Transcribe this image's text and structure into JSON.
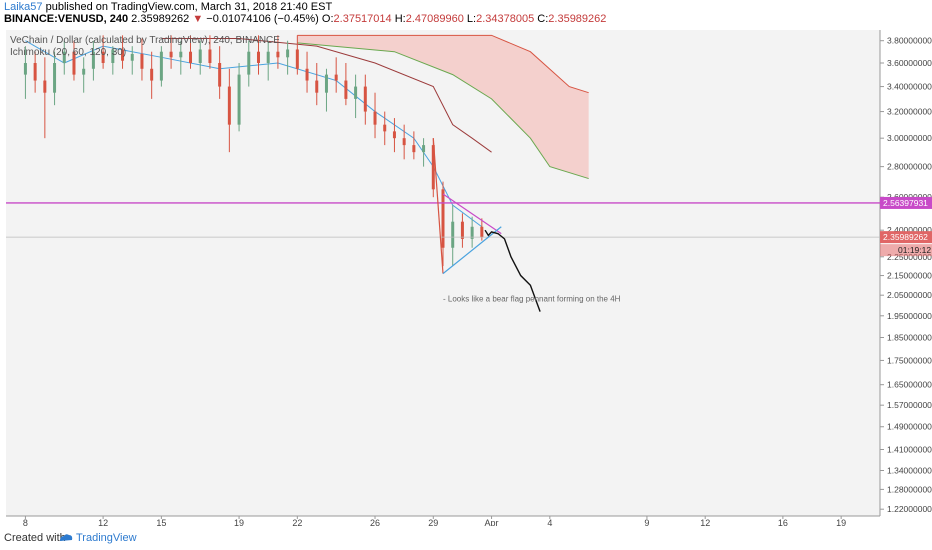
{
  "header": {
    "author": "Laika57",
    "published": "published on TradingView.com, March 31, 2018 21:40 EST",
    "symbol": "BINANCE:VENUSD, 240",
    "last": "2.35989262",
    "arrow": "▼",
    "change": "−0.01074106 (−0.45%)",
    "o_label": "O:",
    "o_value": "2.37517014",
    "h_label": "H:",
    "h_value": "2.47089960",
    "l_label": "L:",
    "l_value": "2.34378005",
    "c_label": "C:",
    "c_value": "2.35989262"
  },
  "legend": {
    "title": "VeChain / Dollar (calculated by TradingView), 240, BINANCE",
    "indicator": "Ichimoku (20, 60, 120, 30)"
  },
  "footer": {
    "created_with": "Created with",
    "brand": "TradingView"
  },
  "colors": {
    "background": "#f3f3f3",
    "up_candle": "#6ba583",
    "down_candle": "#d75442",
    "horizontal_line": "#c84ac8",
    "price_tag": "#e06666",
    "conversion_line": "#4aa3df",
    "base_line": "#9c3b3b",
    "lagging_span": "#6aa84f",
    "cloud_fill": "#f4c7c3",
    "brand": "#2e7bcf"
  },
  "chart_data": {
    "type": "candlestick",
    "y_scale": "log",
    "ylim": [
      1.2,
      3.9
    ],
    "y_ticks": [
      "3.80000000",
      "3.60000000",
      "3.40000000",
      "3.20000000",
      "3.00000000",
      "2.80000000",
      "2.60000000",
      "2.40000000",
      "2.25000000",
      "2.15000000",
      "2.05000000",
      "1.95000000",
      "1.85000000",
      "1.75000000",
      "1.65000000",
      "1.57000000",
      "1.49000000",
      "1.41000000",
      "1.34000000",
      "1.28000000",
      "1.22000000"
    ],
    "x_ticks": [
      "8",
      "12",
      "15",
      "19",
      "22",
      "26",
      "29",
      "Apr",
      "4",
      "9",
      "12",
      "16",
      "19"
    ],
    "x_tick_dates": [
      "2018-03-08",
      "2018-03-12",
      "2018-03-15",
      "2018-03-19",
      "2018-03-22",
      "2018-03-26",
      "2018-03-29",
      "2018-04-01",
      "2018-04-04",
      "2018-04-09",
      "2018-04-12",
      "2018-04-16",
      "2018-04-19"
    ],
    "xlim": [
      "2018-03-07",
      "2018-04-21"
    ],
    "horizontal_level": 2.56397931,
    "horizontal_level_label": "2.56397931",
    "last_price": 2.35989262,
    "last_price_label": "2.35989262",
    "countdown_label": "01:19:12",
    "annotation": "- Looks like a bear flag pennant forming on the 4H",
    "candles": [
      {
        "t": "2018-03-08",
        "o": 3.5,
        "h": 3.75,
        "l": 3.3,
        "c": 3.6
      },
      {
        "t": "2018-03-08T12",
        "o": 3.6,
        "h": 3.7,
        "l": 3.35,
        "c": 3.45
      },
      {
        "t": "2018-03-09",
        "o": 3.45,
        "h": 3.65,
        "l": 3.0,
        "c": 3.35
      },
      {
        "t": "2018-03-09T12",
        "o": 3.35,
        "h": 3.7,
        "l": 3.25,
        "c": 3.6
      },
      {
        "t": "2018-03-10",
        "o": 3.6,
        "h": 3.8,
        "l": 3.5,
        "c": 3.7
      },
      {
        "t": "2018-03-10T12",
        "o": 3.7,
        "h": 3.8,
        "l": 3.45,
        "c": 3.5
      },
      {
        "t": "2018-03-11",
        "o": 3.5,
        "h": 3.65,
        "l": 3.35,
        "c": 3.55
      },
      {
        "t": "2018-03-11T12",
        "o": 3.55,
        "h": 3.8,
        "l": 3.45,
        "c": 3.7
      },
      {
        "t": "2018-03-12",
        "o": 3.7,
        "h": 3.85,
        "l": 3.55,
        "c": 3.6
      },
      {
        "t": "2018-03-12T12",
        "o": 3.6,
        "h": 3.75,
        "l": 3.5,
        "c": 3.72
      },
      {
        "t": "2018-03-13",
        "o": 3.72,
        "h": 3.85,
        "l": 3.55,
        "c": 3.62
      },
      {
        "t": "2018-03-13T12",
        "o": 3.62,
        "h": 3.75,
        "l": 3.5,
        "c": 3.68
      },
      {
        "t": "2018-03-14",
        "o": 3.68,
        "h": 3.82,
        "l": 3.45,
        "c": 3.55
      },
      {
        "t": "2018-03-14T12",
        "o": 3.55,
        "h": 3.7,
        "l": 3.3,
        "c": 3.45
      },
      {
        "t": "2018-03-15",
        "o": 3.45,
        "h": 3.75,
        "l": 3.4,
        "c": 3.7
      },
      {
        "t": "2018-03-15T12",
        "o": 3.7,
        "h": 3.85,
        "l": 3.55,
        "c": 3.65
      },
      {
        "t": "2018-03-16",
        "o": 3.65,
        "h": 3.8,
        "l": 3.5,
        "c": 3.7
      },
      {
        "t": "2018-03-16T12",
        "o": 3.7,
        "h": 3.85,
        "l": 3.55,
        "c": 3.6
      },
      {
        "t": "2018-03-17",
        "o": 3.6,
        "h": 3.8,
        "l": 3.5,
        "c": 3.72
      },
      {
        "t": "2018-03-17T12",
        "o": 3.72,
        "h": 3.85,
        "l": 3.55,
        "c": 3.6
      },
      {
        "t": "2018-03-18",
        "o": 3.6,
        "h": 3.75,
        "l": 3.3,
        "c": 3.4
      },
      {
        "t": "2018-03-18T12",
        "o": 3.4,
        "h": 3.55,
        "l": 2.9,
        "c": 3.1
      },
      {
        "t": "2018-03-19",
        "o": 3.1,
        "h": 3.6,
        "l": 3.05,
        "c": 3.5
      },
      {
        "t": "2018-03-19T12",
        "o": 3.5,
        "h": 3.8,
        "l": 3.4,
        "c": 3.7
      },
      {
        "t": "2018-03-20",
        "o": 3.7,
        "h": 3.85,
        "l": 3.5,
        "c": 3.6
      },
      {
        "t": "2018-03-20T12",
        "o": 3.6,
        "h": 3.8,
        "l": 3.45,
        "c": 3.7
      },
      {
        "t": "2018-03-21",
        "o": 3.7,
        "h": 3.85,
        "l": 3.55,
        "c": 3.65
      },
      {
        "t": "2018-03-21T12",
        "o": 3.65,
        "h": 3.8,
        "l": 3.5,
        "c": 3.72
      },
      {
        "t": "2018-03-22",
        "o": 3.72,
        "h": 3.85,
        "l": 3.5,
        "c": 3.55
      },
      {
        "t": "2018-03-22T12",
        "o": 3.55,
        "h": 3.7,
        "l": 3.35,
        "c": 3.45
      },
      {
        "t": "2018-03-23",
        "o": 3.45,
        "h": 3.6,
        "l": 3.25,
        "c": 3.35
      },
      {
        "t": "2018-03-23T12",
        "o": 3.35,
        "h": 3.55,
        "l": 3.2,
        "c": 3.5
      },
      {
        "t": "2018-03-24",
        "o": 3.5,
        "h": 3.65,
        "l": 3.35,
        "c": 3.45
      },
      {
        "t": "2018-03-24T12",
        "o": 3.45,
        "h": 3.6,
        "l": 3.25,
        "c": 3.3
      },
      {
        "t": "2018-03-25",
        "o": 3.3,
        "h": 3.5,
        "l": 3.15,
        "c": 3.4
      },
      {
        "t": "2018-03-25T12",
        "o": 3.4,
        "h": 3.5,
        "l": 3.1,
        "c": 3.2
      },
      {
        "t": "2018-03-26",
        "o": 3.2,
        "h": 3.35,
        "l": 3.0,
        "c": 3.1
      },
      {
        "t": "2018-03-26T12",
        "o": 3.1,
        "h": 3.2,
        "l": 2.95,
        "c": 3.05
      },
      {
        "t": "2018-03-27",
        "o": 3.05,
        "h": 3.15,
        "l": 2.9,
        "c": 3.0
      },
      {
        "t": "2018-03-27T12",
        "o": 3.0,
        "h": 3.1,
        "l": 2.85,
        "c": 2.95
      },
      {
        "t": "2018-03-28",
        "o": 2.95,
        "h": 3.05,
        "l": 2.85,
        "c": 2.9
      },
      {
        "t": "2018-03-28T12",
        "o": 2.9,
        "h": 3.0,
        "l": 2.8,
        "c": 2.95
      },
      {
        "t": "2018-03-29",
        "o": 2.95,
        "h": 3.0,
        "l": 2.6,
        "c": 2.65
      },
      {
        "t": "2018-03-29T12",
        "o": 2.65,
        "h": 2.7,
        "l": 2.2,
        "c": 2.3
      },
      {
        "t": "2018-03-30",
        "o": 2.3,
        "h": 2.55,
        "l": 2.2,
        "c": 2.45
      },
      {
        "t": "2018-03-30T12",
        "o": 2.45,
        "h": 2.5,
        "l": 2.3,
        "c": 2.35
      },
      {
        "t": "2018-03-31",
        "o": 2.35,
        "h": 2.48,
        "l": 2.3,
        "c": 2.42
      },
      {
        "t": "2018-03-31T12",
        "o": 2.42,
        "h": 2.47,
        "l": 2.34,
        "c": 2.36
      }
    ],
    "tenkan": [
      {
        "t": "2018-03-08",
        "v": 3.8
      },
      {
        "t": "2018-03-10",
        "v": 3.6
      },
      {
        "t": "2018-03-12",
        "v": 3.75
      },
      {
        "t": "2018-03-15",
        "v": 3.65
      },
      {
        "t": "2018-03-18",
        "v": 3.55
      },
      {
        "t": "2018-03-21",
        "v": 3.6
      },
      {
        "t": "2018-03-24",
        "v": 3.45
      },
      {
        "t": "2018-03-26",
        "v": 3.2
      },
      {
        "t": "2018-03-28",
        "v": 3.0
      },
      {
        "t": "2018-03-29",
        "v": 2.8
      },
      {
        "t": "2018-03-30",
        "v": 2.55
      },
      {
        "t": "2018-03-31T12",
        "v": 2.42
      }
    ],
    "kijun": [
      {
        "t": "2018-03-15",
        "v": 3.82
      },
      {
        "t": "2018-03-19",
        "v": 3.82
      },
      {
        "t": "2018-03-23",
        "v": 3.75
      },
      {
        "t": "2018-03-26",
        "v": 3.6
      },
      {
        "t": "2018-03-29",
        "v": 3.4
      },
      {
        "t": "2018-03-30",
        "v": 3.1
      },
      {
        "t": "2018-03-31",
        "v": 3.0
      },
      {
        "t": "2018-04-01",
        "v": 2.9
      }
    ],
    "cloud_upper": [
      {
        "t": "2018-03-22",
        "v": 3.85
      },
      {
        "t": "2018-03-28",
        "v": 3.85
      },
      {
        "t": "2018-04-01",
        "v": 3.85
      },
      {
        "t": "2018-04-03",
        "v": 3.7
      },
      {
        "t": "2018-04-05",
        "v": 3.4
      },
      {
        "t": "2018-04-06",
        "v": 3.35
      }
    ],
    "cloud_lower": [
      {
        "t": "2018-03-22",
        "v": 3.78
      },
      {
        "t": "2018-03-27",
        "v": 3.7
      },
      {
        "t": "2018-03-30",
        "v": 3.5
      },
      {
        "t": "2018-04-01",
        "v": 3.3
      },
      {
        "t": "2018-04-03",
        "v": 3.0
      },
      {
        "t": "2018-04-04",
        "v": 2.8
      },
      {
        "t": "2018-04-06",
        "v": 2.72
      }
    ],
    "flag_upper": [
      {
        "t": "2018-03-29T12",
        "v": 2.62
      },
      {
        "t": "2018-04-01T12",
        "v": 2.38
      }
    ],
    "flag_lower": [
      {
        "t": "2018-03-29T12",
        "v": 2.16
      },
      {
        "t": "2018-04-01T12",
        "v": 2.42
      }
    ],
    "pole": [
      {
        "t": "2018-03-29",
        "v": 3.0
      },
      {
        "t": "2018-03-29T12",
        "v": 2.16
      }
    ],
    "projection": [
      {
        "t": "2018-03-31T16",
        "v": 2.4
      },
      {
        "t": "2018-03-31T20",
        "v": 2.37
      },
      {
        "t": "2018-04-01",
        "v": 2.39
      },
      {
        "t": "2018-04-01T08",
        "v": 2.38
      },
      {
        "t": "2018-04-01T16",
        "v": 2.35
      },
      {
        "t": "2018-04-02",
        "v": 2.25
      },
      {
        "t": "2018-04-02T12",
        "v": 2.15
      },
      {
        "t": "2018-04-03",
        "v": 2.1
      },
      {
        "t": "2018-04-03T12",
        "v": 1.97
      }
    ]
  }
}
